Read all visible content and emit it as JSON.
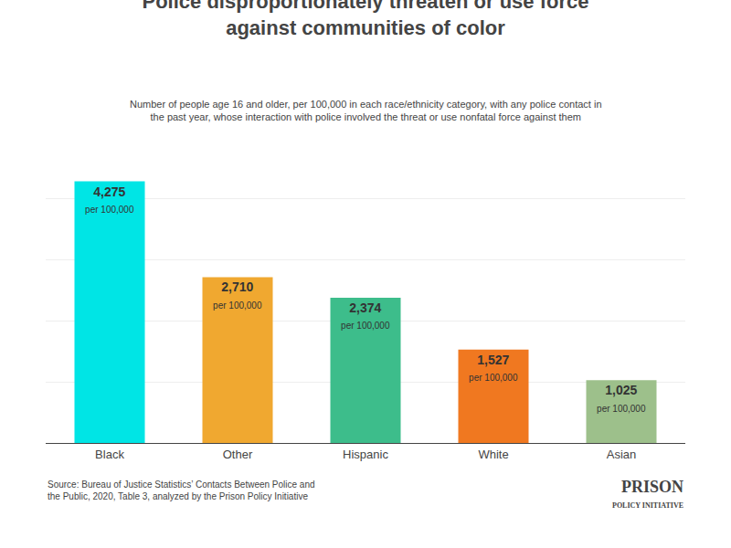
{
  "chart_data": {
    "type": "bar",
    "title": "Police disproportionately threaten or use force\nagainst communities of color",
    "subtitle": "Number of people age 16 and older, per 100,000 in each race/ethnicity category, with any police contact in\nthe past year, whose interaction with police involved the threat or use nonfatal force against them",
    "categories": [
      "Black",
      "Other",
      "Hispanic",
      "White",
      "Asian"
    ],
    "values": [
      4275,
      2710,
      2374,
      1527,
      1025
    ],
    "value_labels": [
      "4,275",
      "2,710",
      "2,374",
      "1,527",
      "1,025"
    ],
    "value_label_unit": "per 100,000",
    "data_labels": true,
    "colors": [
      "#00E5E5",
      "#F0A830",
      "#3DBD8B",
      "#F07820",
      "#9DC08B"
    ],
    "ylim": [
      0,
      5000
    ],
    "yticks": [
      1000,
      2000,
      3000,
      4000,
      5000
    ],
    "grid": true,
    "tick_labels": "x",
    "source": [
      "Source: Bureau of Justice Statistics’ Contacts Between Police and",
      "the Public, 2020, Table 3, analyzed by the Prison Policy Initiative"
    ],
    "logo": [
      "PRISON",
      "POLICY INITIATIVE"
    ]
  }
}
